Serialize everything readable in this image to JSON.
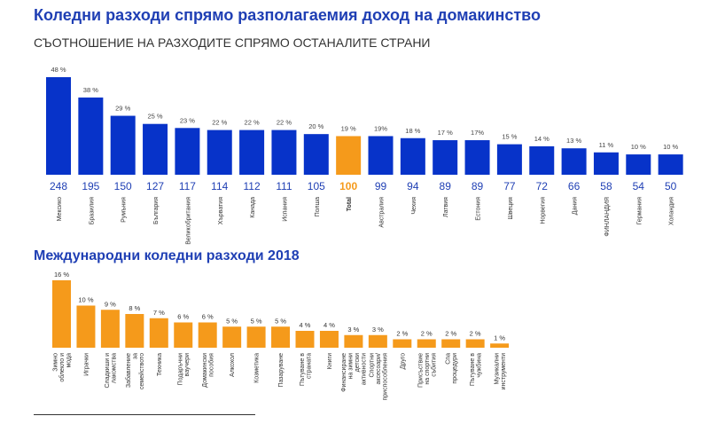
{
  "header": {
    "title": "Коледни разходи спрямо разполагаемия доход на домакинство",
    "subtitle": "СЪОТНОШЕНИЕ НА РАЗХОДИТЕ СПРЯМО ОСТАНАЛИТЕ СТРАНИ"
  },
  "section2": {
    "title": "Международни коледни разходи 2018"
  },
  "colors": {
    "blue": "#0733c9",
    "orange": "#f59a1b",
    "title_blue": "#1f3fb4"
  },
  "chart_data": [
    {
      "type": "bar",
      "categories": [
        "Мексико",
        "Бразилия",
        "Румъния",
        "България",
        "Великобритания",
        "Хърватия",
        "Канада",
        "Испания",
        "Полша",
        "Total",
        "Австралия",
        "Чехия",
        "Латвия",
        "Естония",
        "Швеция",
        "Норвегия",
        "Дания",
        "ФИНЛАНДИЯ",
        "Германия",
        "Холандия"
      ],
      "values": [
        48,
        38,
        29,
        25,
        23,
        22,
        22,
        22,
        20,
        19,
        19,
        18,
        17,
        17,
        15,
        14,
        13,
        11,
        10,
        10
      ],
      "value_labels": [
        "48 %",
        "38 %",
        "29 %",
        "25 %",
        "23 %",
        "22 %",
        "22 %",
        "22 %",
        "20 %",
        "19 %",
        "19%",
        "18 %",
        "17 %",
        "17%",
        "15 %",
        "14 %",
        "13 %",
        "11 %",
        "10 %",
        "10 %"
      ],
      "index_values": [
        "248",
        "195",
        "150",
        "127",
        "117",
        "114",
        "112",
        "111",
        "105",
        "100",
        "99",
        "94",
        "89",
        "89",
        "77",
        "72",
        "66",
        "58",
        "54",
        "50"
      ],
      "highlight_index": 9,
      "ylim": [
        0,
        48
      ],
      "grid": false
    },
    {
      "type": "bar",
      "categories": [
        "Зимно облекло и мода",
        "Играчки",
        "Сладкиши и лакомства",
        "Забавление за семейството",
        "Техника",
        "Подаръчни ваучери",
        "Домакински пособия",
        "Алкохол",
        "Козметика",
        "Пазаруване",
        "Пътуване в страната",
        "Книги",
        "Финансиране на зимни детски активности",
        "Спортни аксесоари/ приспособления",
        "Друго",
        "Присъствие на спортни събития",
        "Спа процедури",
        "Пътуване в чужбина",
        "Музикални инструменти"
      ],
      "values": [
        16,
        10,
        9,
        8,
        7,
        6,
        6,
        5,
        5,
        5,
        4,
        4,
        3,
        3,
        2,
        2,
        2,
        2,
        1
      ],
      "value_labels": [
        "16 %",
        "10 %",
        "9 %",
        "8 %",
        "7 %",
        "6 %",
        "6 %",
        "5 %",
        "5 %",
        "5 %",
        "4 %",
        "4 %",
        "3 %",
        "3 %",
        "2 %",
        "2 %",
        "2 %",
        "2 %",
        "1 %"
      ],
      "ylim": [
        0,
        16
      ],
      "grid": false
    }
  ]
}
